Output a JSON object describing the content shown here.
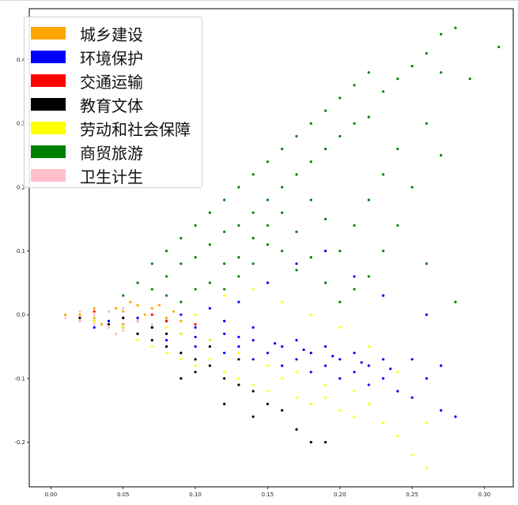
{
  "chart_data": {
    "type": "scatter",
    "title": "",
    "xlabel": "",
    "ylabel": "",
    "xlim": [
      -0.015,
      0.32
    ],
    "ylim": [
      -0.27,
      0.48
    ],
    "x_ticks": [
      0.0,
      0.05,
      0.1,
      0.15,
      0.2,
      0.25,
      0.3
    ],
    "x_tick_labels": [
      "0.00",
      "0.05",
      "0.10",
      "0.15",
      "0.20",
      "0.25",
      "0.30"
    ],
    "y_ticks": [
      -0.2,
      -0.1,
      0.0,
      0.1,
      0.2,
      0.3,
      0.4
    ],
    "y_tick_labels": [
      "-0.2",
      "-0.1",
      "0.0",
      "0.1",
      "0.2",
      "0.3",
      "0.4"
    ],
    "grid": false,
    "legend_position": "top-left",
    "series": [
      {
        "name": "城乡建设",
        "color": "#FFA500",
        "points": [
          [
            0.01,
            0.0
          ],
          [
            0.02,
            0.0
          ],
          [
            0.03,
            -0.005
          ],
          [
            0.03,
            0.01
          ],
          [
            0.04,
            -0.01
          ],
          [
            0.045,
            0.01
          ],
          [
            0.05,
            0.005
          ],
          [
            0.05,
            -0.015
          ],
          [
            0.06,
            0.015
          ],
          [
            0.06,
            -0.01
          ],
          [
            0.065,
            0.0
          ],
          [
            0.07,
            0.01
          ],
          [
            0.07,
            -0.02
          ],
          [
            0.075,
            0.015
          ],
          [
            0.08,
            -0.005
          ],
          [
            0.085,
            0.005
          ],
          [
            0.09,
            -0.01
          ],
          [
            0.04,
            0.005
          ],
          [
            0.035,
            -0.015
          ],
          [
            0.055,
            0.02
          ]
        ]
      },
      {
        "name": "环境保护",
        "color": "#0000FF",
        "points": [
          [
            0.02,
            -0.01
          ],
          [
            0.03,
            -0.02
          ],
          [
            0.04,
            -0.01
          ],
          [
            0.05,
            -0.02
          ],
          [
            0.06,
            -0.03
          ],
          [
            0.07,
            -0.02
          ],
          [
            0.08,
            -0.04
          ],
          [
            0.09,
            -0.03
          ],
          [
            0.1,
            -0.05
          ],
          [
            0.1,
            -0.02
          ],
          [
            0.11,
            -0.04
          ],
          [
            0.12,
            -0.03
          ],
          [
            0.12,
            -0.06
          ],
          [
            0.13,
            -0.05
          ],
          [
            0.14,
            -0.04
          ],
          [
            0.14,
            -0.07
          ],
          [
            0.15,
            -0.06
          ],
          [
            0.16,
            -0.05
          ],
          [
            0.16,
            -0.08
          ],
          [
            0.17,
            -0.07
          ],
          [
            0.18,
            -0.06
          ],
          [
            0.18,
            -0.09
          ],
          [
            0.19,
            -0.08
          ],
          [
            0.2,
            -0.07
          ],
          [
            0.2,
            -0.1
          ],
          [
            0.21,
            -0.09
          ],
          [
            0.22,
            -0.08
          ],
          [
            0.22,
            -0.11
          ],
          [
            0.23,
            -0.1
          ],
          [
            0.24,
            -0.12
          ],
          [
            0.25,
            -0.07
          ],
          [
            0.25,
            -0.13
          ],
          [
            0.26,
            -0.1
          ],
          [
            0.27,
            -0.08
          ],
          [
            0.27,
            -0.15
          ],
          [
            0.28,
            -0.16
          ],
          [
            0.26,
            0.0
          ],
          [
            0.23,
            0.03
          ],
          [
            0.21,
            0.06
          ],
          [
            0.19,
            0.1
          ],
          [
            0.17,
            0.08
          ],
          [
            0.15,
            0.05
          ],
          [
            0.13,
            0.02
          ],
          [
            0.11,
            0.01
          ],
          [
            0.09,
            0.0
          ],
          [
            0.12,
            -0.01
          ],
          [
            0.14,
            -0.02
          ],
          [
            0.17,
            -0.04
          ],
          [
            0.19,
            -0.05
          ],
          [
            0.21,
            -0.06
          ],
          [
            0.23,
            -0.07
          ],
          [
            0.08,
            -0.01
          ],
          [
            0.06,
            -0.005
          ],
          [
            0.1,
            -0.035
          ],
          [
            0.13,
            -0.035
          ],
          [
            0.155,
            -0.045
          ],
          [
            0.175,
            -0.055
          ],
          [
            0.195,
            -0.065
          ],
          [
            0.215,
            -0.075
          ],
          [
            0.235,
            -0.085
          ]
        ]
      },
      {
        "name": "交通运输",
        "color": "#FF0000",
        "points": [
          [
            0.03,
            0.005
          ],
          [
            0.05,
            -0.005
          ],
          [
            0.07,
            0.0
          ],
          [
            0.08,
            -0.01
          ],
          [
            0.1,
            -0.015
          ]
        ]
      },
      {
        "name": "教育文体",
        "color": "#000000",
        "points": [
          [
            0.02,
            -0.005
          ],
          [
            0.03,
            -0.01
          ],
          [
            0.04,
            -0.015
          ],
          [
            0.05,
            -0.02
          ],
          [
            0.06,
            -0.03
          ],
          [
            0.07,
            -0.04
          ],
          [
            0.08,
            -0.05
          ],
          [
            0.09,
            -0.06
          ],
          [
            0.1,
            -0.07
          ],
          [
            0.1,
            -0.09
          ],
          [
            0.11,
            -0.08
          ],
          [
            0.12,
            -0.1
          ],
          [
            0.13,
            -0.11
          ],
          [
            0.14,
            -0.12
          ],
          [
            0.15,
            -0.14
          ],
          [
            0.16,
            -0.15
          ],
          [
            0.17,
            -0.18
          ],
          [
            0.18,
            -0.2
          ],
          [
            0.19,
            -0.2
          ],
          [
            0.06,
            -0.01
          ],
          [
            0.08,
            -0.03
          ],
          [
            0.09,
            -0.1
          ],
          [
            0.12,
            -0.14
          ],
          [
            0.14,
            -0.16
          ],
          [
            0.11,
            -0.05
          ],
          [
            0.07,
            -0.02
          ],
          [
            0.05,
            -0.005
          ],
          [
            0.13,
            -0.07
          ]
        ]
      },
      {
        "name": "劳动和社会保障",
        "color": "#FFFF00",
        "points": [
          [
            0.03,
            -0.01
          ],
          [
            0.05,
            -0.02
          ],
          [
            0.06,
            -0.04
          ],
          [
            0.07,
            -0.05
          ],
          [
            0.08,
            -0.06
          ],
          [
            0.09,
            -0.07
          ],
          [
            0.1,
            -0.08
          ],
          [
            0.11,
            -0.07
          ],
          [
            0.12,
            -0.09
          ],
          [
            0.13,
            -0.1
          ],
          [
            0.14,
            -0.11
          ],
          [
            0.15,
            -0.12
          ],
          [
            0.16,
            -0.1
          ],
          [
            0.17,
            -0.13
          ],
          [
            0.18,
            -0.14
          ],
          [
            0.19,
            -0.13
          ],
          [
            0.2,
            -0.15
          ],
          [
            0.21,
            -0.16
          ],
          [
            0.22,
            -0.14
          ],
          [
            0.23,
            -0.17
          ],
          [
            0.24,
            -0.19
          ],
          [
            0.25,
            -0.22
          ],
          [
            0.26,
            -0.24
          ],
          [
            0.26,
            -0.17
          ],
          [
            0.24,
            -0.09
          ],
          [
            0.22,
            -0.05
          ],
          [
            0.2,
            -0.02
          ],
          [
            0.18,
            0.0
          ],
          [
            0.16,
            0.02
          ],
          [
            0.14,
            0.04
          ],
          [
            0.12,
            0.03
          ],
          [
            0.1,
            0.0
          ],
          [
            0.08,
            -0.02
          ],
          [
            0.11,
            -0.04
          ],
          [
            0.15,
            -0.08
          ],
          [
            0.19,
            -0.11
          ],
          [
            0.13,
            -0.06
          ],
          [
            0.17,
            -0.09
          ],
          [
            0.21,
            -0.12
          ],
          [
            0.09,
            -0.03
          ]
        ]
      },
      {
        "name": "商贸旅游",
        "color": "#008000",
        "points": [
          [
            0.05,
            0.03
          ],
          [
            0.06,
            0.05
          ],
          [
            0.07,
            0.04
          ],
          [
            0.07,
            0.08
          ],
          [
            0.08,
            0.06
          ],
          [
            0.08,
            0.1
          ],
          [
            0.09,
            0.08
          ],
          [
            0.09,
            0.12
          ],
          [
            0.1,
            0.09
          ],
          [
            0.1,
            0.14
          ],
          [
            0.11,
            0.11
          ],
          [
            0.11,
            0.16
          ],
          [
            0.12,
            0.13
          ],
          [
            0.12,
            0.18
          ],
          [
            0.13,
            0.14
          ],
          [
            0.13,
            0.2
          ],
          [
            0.14,
            0.16
          ],
          [
            0.14,
            0.22
          ],
          [
            0.15,
            0.18
          ],
          [
            0.15,
            0.24
          ],
          [
            0.16,
            0.2
          ],
          [
            0.16,
            0.26
          ],
          [
            0.17,
            0.22
          ],
          [
            0.17,
            0.28
          ],
          [
            0.18,
            0.24
          ],
          [
            0.18,
            0.3
          ],
          [
            0.19,
            0.26
          ],
          [
            0.19,
            0.32
          ],
          [
            0.2,
            0.28
          ],
          [
            0.2,
            0.34
          ],
          [
            0.21,
            0.3
          ],
          [
            0.21,
            0.36
          ],
          [
            0.22,
            0.31
          ],
          [
            0.22,
            0.38
          ],
          [
            0.23,
            0.35
          ],
          [
            0.24,
            0.37
          ],
          [
            0.25,
            0.39
          ],
          [
            0.26,
            0.41
          ],
          [
            0.27,
            0.44
          ],
          [
            0.28,
            0.45
          ],
          [
            0.29,
            0.37
          ],
          [
            0.31,
            0.42
          ],
          [
            0.27,
            0.38
          ],
          [
            0.26,
            0.3
          ],
          [
            0.25,
            0.2
          ],
          [
            0.24,
            0.14
          ],
          [
            0.23,
            0.1
          ],
          [
            0.22,
            0.06
          ],
          [
            0.21,
            0.04
          ],
          [
            0.2,
            0.02
          ],
          [
            0.19,
            0.05
          ],
          [
            0.18,
            0.09
          ],
          [
            0.17,
            0.13
          ],
          [
            0.16,
            0.16
          ],
          [
            0.15,
            0.11
          ],
          [
            0.14,
            0.08
          ],
          [
            0.13,
            0.06
          ],
          [
            0.12,
            0.04
          ],
          [
            0.11,
            0.05
          ],
          [
            0.1,
            0.04
          ],
          [
            0.09,
            0.02
          ],
          [
            0.08,
            0.03
          ],
          [
            0.24,
            0.26
          ],
          [
            0.23,
            0.22
          ],
          [
            0.22,
            0.18
          ],
          [
            0.21,
            0.14
          ],
          [
            0.2,
            0.1
          ],
          [
            0.19,
            0.15
          ],
          [
            0.18,
            0.18
          ],
          [
            0.17,
            0.07
          ],
          [
            0.16,
            0.1
          ],
          [
            0.15,
            0.14
          ],
          [
            0.14,
            0.12
          ],
          [
            0.13,
            0.09
          ],
          [
            0.12,
            0.08
          ],
          [
            0.26,
            0.08
          ],
          [
            0.27,
            0.25
          ],
          [
            0.28,
            0.02
          ]
        ]
      },
      {
        "name": "卫生计生",
        "color": "#FFC0CB",
        "points": [
          [
            0.01,
            -0.005
          ],
          [
            0.02,
            -0.01
          ],
          [
            0.03,
            -0.015
          ],
          [
            0.04,
            -0.02
          ],
          [
            0.05,
            -0.025
          ],
          [
            0.03,
            0.0
          ],
          [
            0.04,
            0.005
          ],
          [
            0.06,
            -0.01
          ],
          [
            0.07,
            -0.015
          ],
          [
            0.05,
            0.01
          ],
          [
            0.02,
            0.005
          ],
          [
            0.045,
            -0.03
          ]
        ]
      }
    ]
  }
}
